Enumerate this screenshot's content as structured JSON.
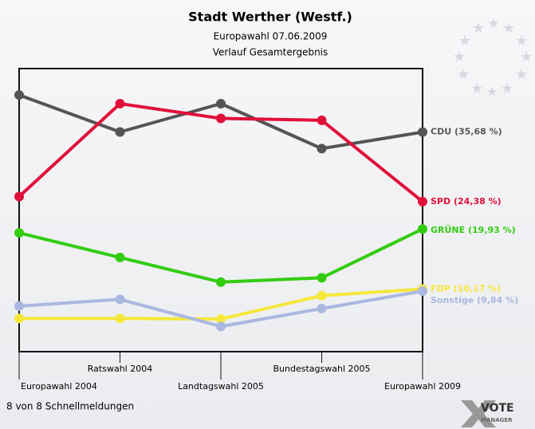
{
  "chart_data": {
    "type": "line",
    "title": "Stadt Werther (Westf.)",
    "subtitle": [
      "Europawahl 07.06.2009",
      "Verlauf Gesamtergebnis"
    ],
    "footer": "8 von 8 Schnellmeldungen",
    "logo": [
      "VOTE",
      "MANAGER"
    ],
    "categories": [
      "Europawahl 2004",
      "Ratswahl 2004",
      "Landtagswahl 2005",
      "Bundestagswahl 2005",
      "Europawahl 2009"
    ],
    "ylim": [
      0,
      46
    ],
    "series": [
      {
        "color": "#555555",
        "values": [
          41.7,
          35.7,
          40.3,
          33.0,
          35.68
        ],
        "value_labels": [
          null,
          null,
          null,
          null,
          "CDU (35,68 %)"
        ]
      },
      {
        "color": "#e0103a",
        "values": [
          25.2,
          40.3,
          37.9,
          37.6,
          24.38
        ],
        "value_labels": [
          null,
          null,
          null,
          null,
          "SPD (24,38 %)"
        ]
      },
      {
        "color": "#33cc11",
        "values": [
          19.3,
          15.3,
          11.3,
          12.0,
          19.93
        ],
        "value_labels": [
          null,
          null,
          null,
          null,
          "GRÜNE (19,93 %)"
        ]
      },
      {
        "color": "#f5e83a",
        "values": [
          5.4,
          5.4,
          5.3,
          9.1,
          10.17
        ],
        "value_labels": [
          null,
          null,
          null,
          null,
          "FDP (10,17 %)"
        ]
      },
      {
        "color": "#aab8e0",
        "values": [
          7.4,
          8.5,
          4.1,
          7.0,
          9.84
        ],
        "value_labels": [
          null,
          null,
          null,
          null,
          "Sonstige (9,84 %)"
        ]
      }
    ]
  }
}
